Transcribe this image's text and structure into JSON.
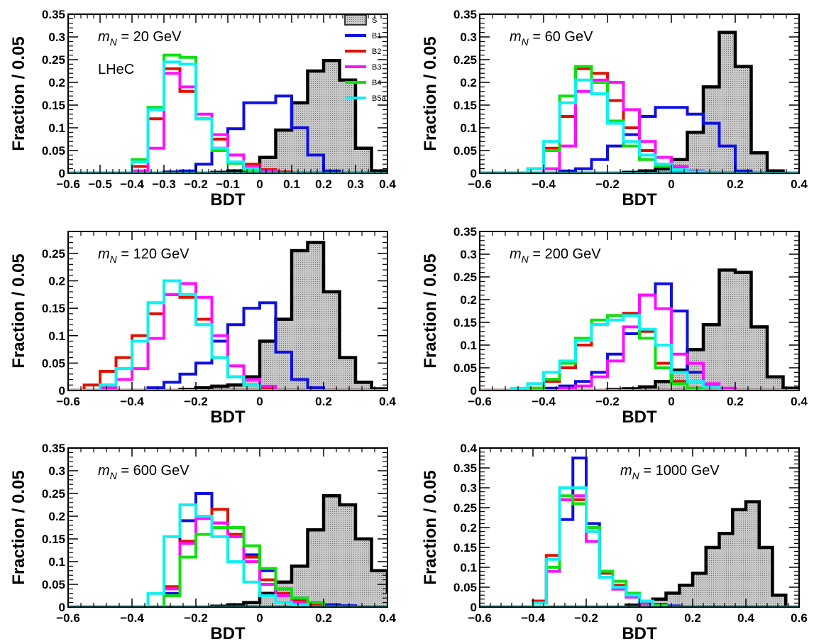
{
  "colors": {
    "S": "#000000",
    "B1": "#1010e0",
    "B2": "#e01000",
    "B3": "#ff10ff",
    "B4": "#10e010",
    "B5a": "#10f0f0",
    "hatch_bg": "#c8c8c8"
  },
  "legend": {
    "placement": "top-right of first panel",
    "entries": [
      "S",
      "B1",
      "B2",
      "B3",
      "B4",
      "B5a"
    ]
  },
  "chart_data": [
    {
      "type": "histogram",
      "annotation": "m_N = 20 GeV",
      "annotation2": "LHeC",
      "xlabel": "BDT",
      "ylabel": "Fraction / 0.05",
      "xlim": [
        -0.6,
        0.4
      ],
      "ylim": [
        0,
        0.35
      ],
      "xticks": [
        -0.6,
        -0.5,
        -0.4,
        -0.3,
        -0.2,
        -0.1,
        0,
        0.1,
        0.2,
        0.3,
        0.4
      ],
      "yticks": [
        0,
        0.05,
        0.1,
        0.15,
        0.2,
        0.25,
        0.3,
        0.35
      ],
      "bin_width": 0.05,
      "series": [
        {
          "name": "S",
          "x0": -0.15,
          "values": [
            0.002,
            0.005,
            0.015,
            0.035,
            0.095,
            0.155,
            0.225,
            0.248,
            0.205,
            0.055,
            0.005
          ]
        },
        {
          "name": "B1",
          "x0": -0.3,
          "values": [
            0.003,
            0.005,
            0.02,
            0.055,
            0.098,
            0.155,
            0.155,
            0.17,
            0.1,
            0.04,
            0.005
          ]
        },
        {
          "name": "B2",
          "x0": -0.4,
          "values": [
            0.015,
            0.12,
            0.23,
            0.18,
            0.12,
            0.075,
            0.04,
            0.02,
            0.008,
            0.003
          ]
        },
        {
          "name": "B3",
          "x0": -0.4,
          "values": [
            0.005,
            0.055,
            0.22,
            0.19,
            0.13,
            0.085,
            0.04,
            0.015,
            0.005
          ]
        },
        {
          "name": "B4",
          "x0": -0.4,
          "values": [
            0.03,
            0.145,
            0.26,
            0.255,
            0.12,
            0.05,
            0.022,
            0.008
          ]
        },
        {
          "name": "B5a",
          "x0": -0.4,
          "values": [
            0.025,
            0.14,
            0.245,
            0.24,
            0.12,
            0.055,
            0.025,
            0.01
          ]
        }
      ]
    },
    {
      "type": "histogram",
      "annotation": "m_N = 60 GeV",
      "xlabel": "BDT",
      "ylabel": "Fraction / 0.05",
      "xlim": [
        -0.6,
        0.4
      ],
      "ylim": [
        0,
        0.35
      ],
      "xticks": [
        -0.6,
        -0.4,
        -0.2,
        0,
        0.2,
        0.4
      ],
      "yticks": [
        0,
        0.05,
        0.1,
        0.15,
        0.2,
        0.25,
        0.3,
        0.35
      ],
      "bin_width": 0.05,
      "series": [
        {
          "name": "S",
          "x0": -0.15,
          "values": [
            0.002,
            0.005,
            0.01,
            0.03,
            0.09,
            0.19,
            0.31,
            0.235,
            0.045,
            0.005
          ]
        },
        {
          "name": "B1",
          "x0": -0.35,
          "values": [
            0.005,
            0.01,
            0.03,
            0.06,
            0.085,
            0.125,
            0.145,
            0.145,
            0.13,
            0.11,
            0.06,
            0.005
          ]
        },
        {
          "name": "B2",
          "x0": -0.45,
          "values": [
            0.01,
            0.055,
            0.125,
            0.23,
            0.22,
            0.16,
            0.1,
            0.05,
            0.02,
            0.01,
            0.005
          ]
        },
        {
          "name": "B3",
          "x0": -0.4,
          "values": [
            0.01,
            0.06,
            0.18,
            0.205,
            0.2,
            0.14,
            0.07,
            0.035,
            0.015,
            0.005
          ]
        },
        {
          "name": "B4",
          "x0": -0.45,
          "values": [
            0.01,
            0.05,
            0.17,
            0.235,
            0.2,
            0.115,
            0.06,
            0.03,
            0.015,
            0.005
          ]
        },
        {
          "name": "B5a",
          "x0": -0.45,
          "values": [
            0.01,
            0.07,
            0.155,
            0.205,
            0.175,
            0.11,
            0.07,
            0.04,
            0.02,
            0.008,
            0.003
          ]
        }
      ]
    },
    {
      "type": "histogram",
      "annotation": "m_N = 120 GeV",
      "xlabel": "BDT",
      "ylabel": "Fraction / 0.05",
      "xlim": [
        -0.6,
        0.4
      ],
      "ylim": [
        0,
        0.29
      ],
      "xticks": [
        -0.6,
        -0.4,
        -0.2,
        0,
        0.2,
        0.4
      ],
      "yticks": [
        0,
        0.05,
        0.1,
        0.15,
        0.2,
        0.25
      ],
      "bin_width": 0.05,
      "series": [
        {
          "name": "S",
          "x0": -0.25,
          "values": [
            0.002,
            0.005,
            0.008,
            0.01,
            0.025,
            0.09,
            0.13,
            0.255,
            0.27,
            0.18,
            0.06,
            0.015,
            0.003
          ]
        },
        {
          "name": "B1",
          "x0": -0.35,
          "values": [
            0.005,
            0.015,
            0.03,
            0.05,
            0.09,
            0.12,
            0.15,
            0.16,
            0.07,
            0.02,
            0.005
          ]
        },
        {
          "name": "B2",
          "x0": -0.55,
          "values": [
            0.01,
            0.035,
            0.06,
            0.1,
            0.14,
            0.175,
            0.17,
            0.13,
            0.06,
            0.025,
            0.01,
            0.005
          ]
        },
        {
          "name": "B3",
          "x0": -0.5,
          "values": [
            0.005,
            0.02,
            0.04,
            0.095,
            0.175,
            0.195,
            0.17,
            0.1,
            0.045,
            0.02,
            0.008
          ]
        },
        {
          "name": "B4",
          "x0": -0.5,
          "values": [
            0.01,
            0.04,
            0.09,
            0.16,
            0.2,
            0.175,
            0.12,
            0.06,
            0.025,
            0.01
          ]
        },
        {
          "name": "B5a",
          "x0": -0.5,
          "values": [
            0.01,
            0.04,
            0.09,
            0.16,
            0.2,
            0.175,
            0.12,
            0.06,
            0.025,
            0.01
          ]
        }
      ]
    },
    {
      "type": "histogram",
      "annotation": "m_N = 200 GeV",
      "xlabel": "BDT",
      "ylabel": "Fraction / 0.05",
      "xlim": [
        -0.6,
        0.4
      ],
      "ylim": [
        0,
        0.35
      ],
      "xticks": [
        -0.6,
        -0.4,
        -0.2,
        0,
        0.2,
        0.4
      ],
      "yticks": [
        0,
        0.05,
        0.1,
        0.15,
        0.2,
        0.25,
        0.3,
        0.35
      ],
      "bin_width": 0.05,
      "series": [
        {
          "name": "S",
          "x0": -0.2,
          "values": [
            0.002,
            0.004,
            0.008,
            0.02,
            0.045,
            0.09,
            0.145,
            0.265,
            0.26,
            0.14,
            0.03,
            0.005
          ]
        },
        {
          "name": "B1",
          "x0": -0.4,
          "values": [
            0.005,
            0.01,
            0.02,
            0.04,
            0.08,
            0.125,
            0.21,
            0.235,
            0.175,
            0.04,
            0.01
          ]
        },
        {
          "name": "B2",
          "x0": -0.45,
          "values": [
            0.005,
            0.02,
            0.05,
            0.1,
            0.145,
            0.165,
            0.17,
            0.13,
            0.06,
            0.02,
            0.005
          ]
        },
        {
          "name": "B3",
          "x0": -0.35,
          "values": [
            0.005,
            0.01,
            0.03,
            0.065,
            0.14,
            0.21,
            0.18,
            0.08,
            0.06,
            0.015,
            0.005
          ]
        },
        {
          "name": "B4",
          "x0": -0.45,
          "values": [
            0.005,
            0.025,
            0.06,
            0.115,
            0.155,
            0.165,
            0.165,
            0.115,
            0.05,
            0.015,
            0.005
          ]
        },
        {
          "name": "B5a",
          "x0": -0.5,
          "values": [
            0.005,
            0.015,
            0.04,
            0.065,
            0.11,
            0.145,
            0.155,
            0.165,
            0.135,
            0.1,
            0.04,
            0.02,
            0.008
          ]
        }
      ]
    },
    {
      "type": "histogram",
      "annotation": "m_N = 600 GeV",
      "xlabel": "BDT",
      "ylabel": "Fraction / 0.05",
      "xlim": [
        -0.6,
        0.4
      ],
      "ylim": [
        0,
        0.35
      ],
      "xticks": [
        -0.6,
        -0.4,
        -0.2,
        0,
        0.2,
        0.4
      ],
      "yticks": [
        0,
        0.05,
        0.1,
        0.15,
        0.2,
        0.25,
        0.3,
        0.35
      ],
      "bin_width": 0.05,
      "series": [
        {
          "name": "S",
          "x0": -0.15,
          "values": [
            0.002,
            0.005,
            0.01,
            0.03,
            0.055,
            0.09,
            0.17,
            0.245,
            0.225,
            0.15,
            0.08,
            0.035
          ]
        },
        {
          "name": "B1",
          "x0": -0.3,
          "values": [
            0.03,
            0.19,
            0.25,
            0.185,
            0.155,
            0.115,
            0.08,
            0.04,
            0.02,
            0.01,
            0.005,
            0.003
          ]
        },
        {
          "name": "B2",
          "x0": -0.3,
          "values": [
            0.045,
            0.145,
            0.2,
            0.215,
            0.16,
            0.11,
            0.06,
            0.03,
            0.015,
            0.005
          ]
        },
        {
          "name": "B3",
          "x0": -0.3,
          "values": [
            0.04,
            0.14,
            0.195,
            0.185,
            0.155,
            0.1,
            0.05,
            0.025,
            0.01
          ]
        },
        {
          "name": "B4",
          "x0": -0.3,
          "values": [
            0.025,
            0.11,
            0.16,
            0.175,
            0.175,
            0.135,
            0.085,
            0.04,
            0.02,
            0.01
          ]
        },
        {
          "name": "B5a",
          "x0": -0.35,
          "values": [
            0.03,
            0.155,
            0.225,
            0.2,
            0.155,
            0.1,
            0.055,
            0.025,
            0.01,
            0.005
          ]
        }
      ]
    },
    {
      "type": "histogram",
      "annotation": "m_N = 1000 GeV",
      "xlabel": "BDT",
      "ylabel": "Fraction / 0.05",
      "xlim": [
        -0.6,
        0.6
      ],
      "ylim": [
        0,
        0.4
      ],
      "xticks": [
        -0.6,
        -0.4,
        -0.2,
        0,
        0.2,
        0.4,
        0.6
      ],
      "yticks": [
        0,
        0.05,
        0.1,
        0.15,
        0.2,
        0.25,
        0.3,
        0.35,
        0.4
      ],
      "bin_width": 0.05,
      "series": [
        {
          "name": "S",
          "x0": -0.05,
          "values": [
            0.005,
            0.01,
            0.02,
            0.035,
            0.055,
            0.085,
            0.15,
            0.185,
            0.245,
            0.265,
            0.15,
            0.03
          ]
        },
        {
          "name": "B1",
          "x0": -0.4,
          "values": [
            0.015,
            0.1,
            0.22,
            0.375,
            0.21,
            0.09,
            0.05,
            0.03,
            0.015,
            0.007,
            0.003
          ]
        },
        {
          "name": "B2",
          "x0": -0.4,
          "values": [
            0.015,
            0.13,
            0.27,
            0.27,
            0.19,
            0.085,
            0.055,
            0.03,
            0.015,
            0.005
          ]
        },
        {
          "name": "B3",
          "x0": -0.4,
          "values": [
            0.01,
            0.09,
            0.27,
            0.28,
            0.165,
            0.075,
            0.045,
            0.025,
            0.01
          ]
        },
        {
          "name": "B4",
          "x0": -0.4,
          "values": [
            0.01,
            0.1,
            0.28,
            0.26,
            0.2,
            0.09,
            0.065,
            0.035,
            0.015,
            0.005
          ]
        },
        {
          "name": "B5a",
          "x0": -0.4,
          "values": [
            0.01,
            0.12,
            0.3,
            0.3,
            0.19,
            0.075,
            0.05,
            0.03,
            0.015
          ]
        }
      ]
    }
  ]
}
